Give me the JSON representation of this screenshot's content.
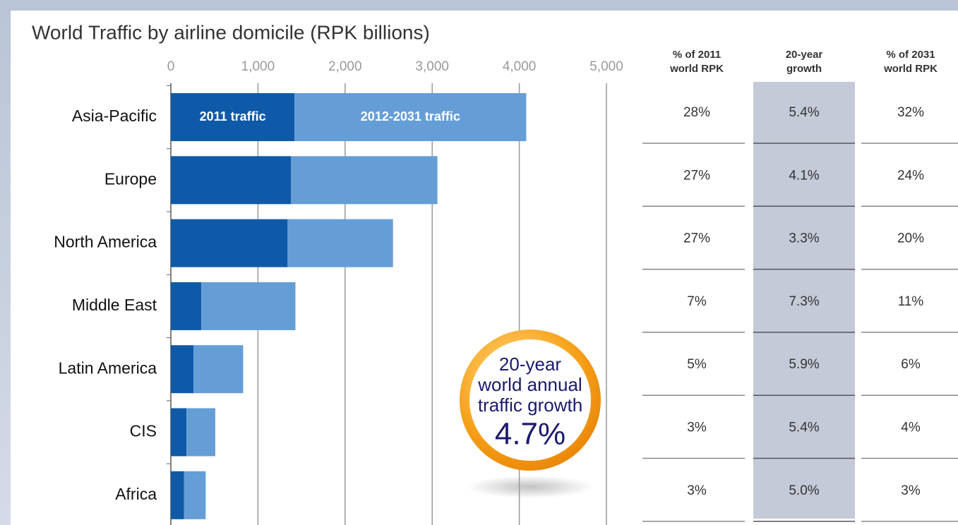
{
  "chart_data": {
    "type": "stacked-bar-horizontal",
    "title": "World Traffic by airline domicile (RPK billions)",
    "categories": [
      "Asia-Pacific",
      "Europe",
      "North America",
      "Middle East",
      "Latin America",
      "CIS",
      "Africa"
    ],
    "series": [
      {
        "name": "2011 traffic",
        "color": "#0f5aa8",
        "values": [
          1420,
          1380,
          1340,
          350,
          260,
          180,
          150
        ]
      },
      {
        "name": "2012-2031 traffic",
        "color": "#659ed6",
        "values": [
          2660,
          1680,
          1210,
          1080,
          570,
          330,
          250
        ]
      }
    ],
    "xlim": [
      0,
      5000
    ],
    "xticks": [
      0,
      {
        "value": 1000,
        "label": "1,000"
      },
      {
        "value": 2000,
        "label": "2,000"
      },
      {
        "value": 3000,
        "label": "3,000"
      },
      {
        "value": 4000,
        "label": "4,000"
      },
      {
        "value": 5000,
        "label": "5,000"
      }
    ],
    "grid": true
  },
  "table": {
    "headers": [
      [
        "% of 2011",
        "world RPK"
      ],
      [
        "20-year",
        "growth"
      ],
      [
        "% of 2031",
        "world RPK"
      ]
    ],
    "rows": [
      [
        "28%",
        "5.4%",
        "32%"
      ],
      [
        "27%",
        "4.1%",
        "24%"
      ],
      [
        "27%",
        "3.3%",
        "20%"
      ],
      [
        "7%",
        "7.3%",
        "11%"
      ],
      [
        "5%",
        "5.9%",
        "6%"
      ],
      [
        "3%",
        "5.4%",
        "4%"
      ],
      [
        "3%",
        "5.0%",
        "3%"
      ]
    ]
  },
  "callout": {
    "lines": [
      "20-year",
      "world annual",
      "traffic growth"
    ],
    "value": "4.7%"
  }
}
